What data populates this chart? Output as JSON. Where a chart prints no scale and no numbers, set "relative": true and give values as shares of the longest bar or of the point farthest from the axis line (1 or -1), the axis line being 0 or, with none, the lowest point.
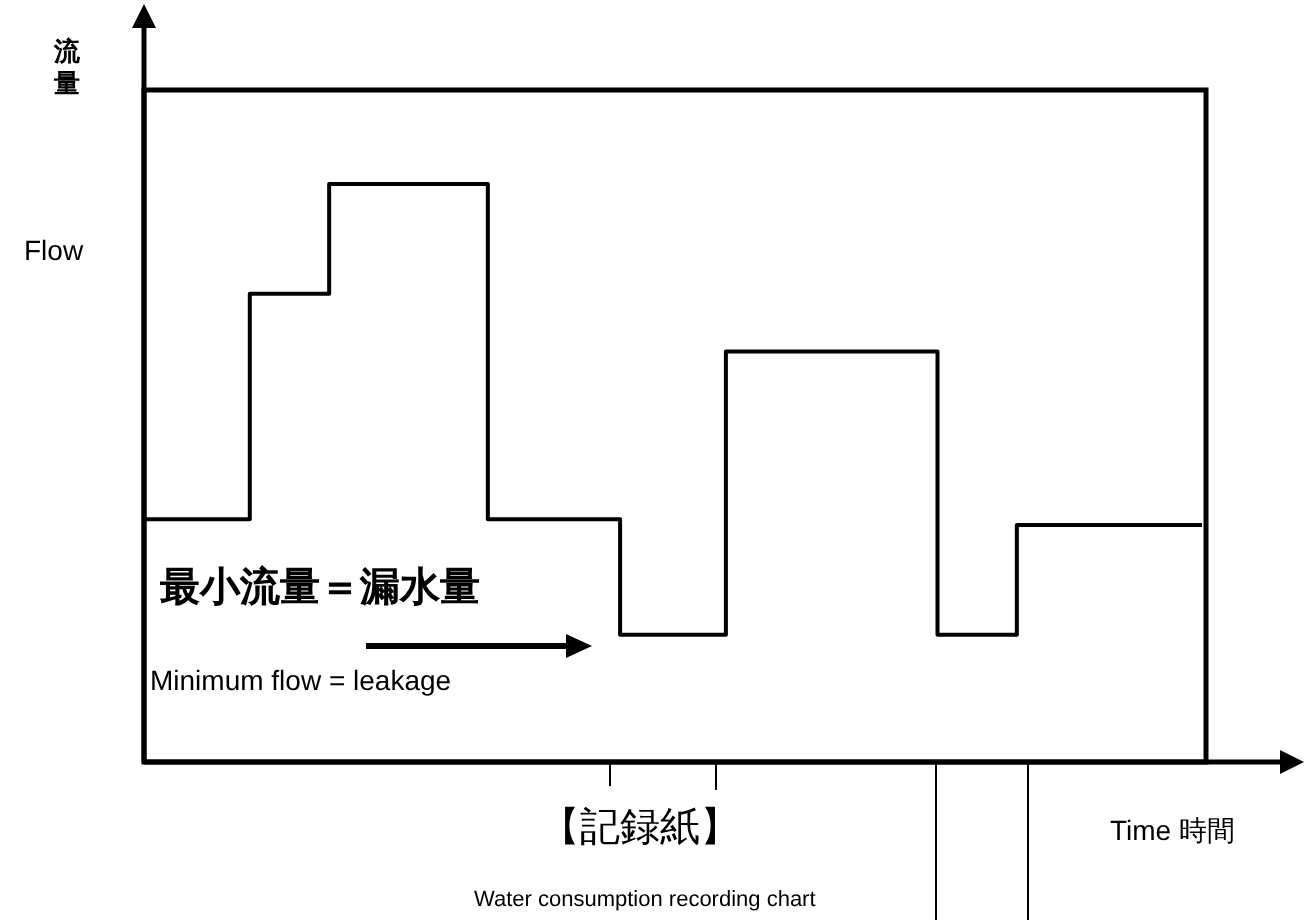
{
  "chart_data": {
    "type": "step",
    "relative": true,
    "color": "#000000",
    "categories": [
      null,
      null,
      null,
      null,
      null,
      null,
      null,
      null,
      null,
      null,
      null,
      null,
      null,
      null,
      null,
      null,
      null,
      null,
      null,
      null,
      null,
      null,
      null,
      null,
      null,
      null,
      null,
      null,
      null,
      null,
      null,
      null,
      null,
      null,
      null,
      null,
      null,
      null,
      null,
      null,
      null
    ],
    "values": [
      0.42,
      0.42,
      0.42,
      0.42,
      0.81,
      0.81,
      0.81,
      1,
      1,
      1,
      1,
      1,
      1,
      0.42,
      0.42,
      0.42,
      0.42,
      0.42,
      0.22,
      0.22,
      0.22,
      0.22,
      0.71,
      0.71,
      0.71,
      0.71,
      0.71,
      0.71,
      0.71,
      0.71,
      0.22,
      0.22,
      0.22,
      0.41,
      0.41,
      0.41,
      0.41,
      0.41,
      0.41,
      0.41,
      0.41
    ],
    "xlabel": "Time 時間",
    "ylabel": "Flow",
    "annotations": [
      "流量",
      "最小流量＝漏水量",
      "Minimum flow = leakage",
      "【記録紙】",
      "Water consumption recording chart"
    ]
  }
}
